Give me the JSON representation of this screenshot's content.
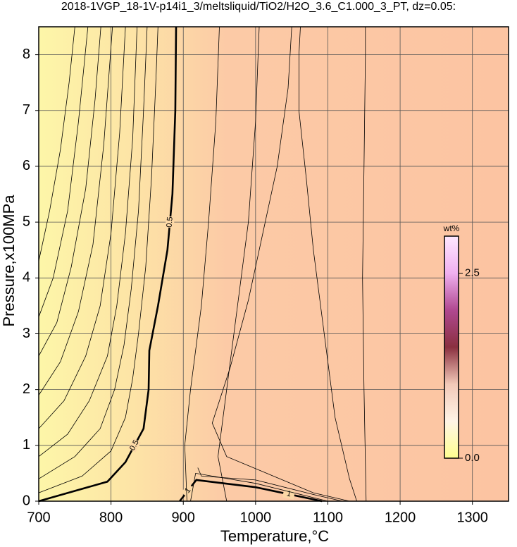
{
  "chart_data": {
    "type": "contour",
    "title": "2018-1VGP_18-1V-p14i1_3/meltsliquid/TiO2/H2O_3.6_C1.000_3_PT, dz=0.05:",
    "x_label": "Temperature,°C",
    "y_label": "Pressure,x100MPa",
    "xlim": [
      700,
      1350
    ],
    "xticks": [
      700,
      800,
      900,
      1000,
      1100,
      1200,
      1300
    ],
    "ylim": [
      0,
      8.5
    ],
    "yticks": [
      0,
      1,
      2,
      3,
      4,
      5,
      6,
      7,
      8
    ],
    "grid": true,
    "contours": [
      {
        "level": 0.5,
        "x": [
          700,
          795,
          820,
          845,
          852,
          853,
          865,
          878,
          885,
          889,
          890
        ],
        "y": [
          0,
          0.35,
          0.7,
          1.3,
          2.0,
          2.7,
          3.5,
          4.5,
          5.5,
          7,
          8.5
        ],
        "labels": [
          "0.5",
          "0.5"
        ]
      },
      {
        "level": 1,
        "x": [
          895,
          918,
          1000,
          1092
        ],
        "y": [
          0,
          0.38,
          0.25,
          0
        ],
        "labels": [
          "1",
          "1"
        ]
      },
      {
        "level": 0.45,
        "x": [
          700,
          760,
          800,
          820,
          830,
          838,
          848,
          856,
          862,
          865
        ],
        "y": [
          0.15,
          0.45,
          0.9,
          1.5,
          2.2,
          3,
          4.2,
          5.8,
          7.5,
          8.5
        ]
      },
      {
        "level": 0.4,
        "x": [
          700,
          750,
          785,
          805,
          818,
          828,
          838,
          845,
          850
        ],
        "y": [
          0.4,
          0.8,
          1.3,
          2.0,
          2.8,
          3.8,
          5.2,
          7,
          8.5
        ]
      },
      {
        "level": 0.35,
        "x": [
          700,
          740,
          770,
          795,
          808,
          820,
          830,
          836
        ],
        "y": [
          0.8,
          1.2,
          1.8,
          2.6,
          3.5,
          4.8,
          6.5,
          8.5
        ]
      },
      {
        "level": 0.3,
        "x": [
          700,
          735,
          765,
          785,
          800,
          812,
          820
        ],
        "y": [
          1.3,
          1.8,
          2.6,
          3.5,
          4.8,
          6.6,
          8.5
        ]
      },
      {
        "level": 0.25,
        "x": [
          700,
          730,
          755,
          775,
          790,
          802
        ],
        "y": [
          1.9,
          2.5,
          3.4,
          4.6,
          6.4,
          8.5
        ]
      },
      {
        "level": 0.2,
        "x": [
          700,
          725,
          745,
          765,
          778,
          786
        ],
        "y": [
          2.6,
          3.2,
          4.2,
          5.6,
          7.2,
          8.5
        ]
      },
      {
        "level": 0.15,
        "x": [
          700,
          720,
          740,
          755,
          768
        ],
        "y": [
          3.3,
          4.0,
          5.2,
          6.8,
          8.5
        ]
      },
      {
        "level": 0.1,
        "x": [
          700,
          715,
          730,
          742,
          750
        ],
        "y": [
          4.3,
          5.2,
          6.3,
          7.5,
          8.5
        ]
      },
      {
        "level": 0.55,
        "x": [
          905,
          902,
          910,
          925,
          935,
          945,
          950
        ],
        "y": [
          0,
          1.0,
          2.0,
          3.5,
          5.0,
          6.8,
          8.5
        ]
      },
      {
        "level": 0.6,
        "x": [
          960,
          948,
          960,
          975,
          990,
          1000,
          1005
        ],
        "y": [
          0,
          0.8,
          2.0,
          3.5,
          5.0,
          6.8,
          8.5
        ]
      },
      {
        "level": 0.65,
        "x": [
          1130,
          1080,
          960,
          940,
          965,
          990,
          1010,
          1030,
          1045,
          1050
        ],
        "y": [
          0,
          0.15,
          0.8,
          1.4,
          2.4,
          3.6,
          4.8,
          6,
          7.4,
          8.5
        ]
      },
      {
        "level": 0.7,
        "x": [
          1140,
          1130,
          1110,
          1095,
          1080,
          1070,
          1060,
          1060,
          1062
        ],
        "y": [
          0,
          0.4,
          1.5,
          3,
          4.5,
          5.8,
          7,
          8,
          8.5
        ]
      },
      {
        "level": 0.75,
        "x": [
          1153,
          1150,
          1148,
          1150,
          1152,
          1152
        ],
        "y": [
          0,
          2,
          4,
          6,
          8,
          8.5
        ]
      },
      {
        "level": 0.9,
        "x": [
          920,
          925,
          1000,
          1080,
          1120
        ],
        "y": [
          0.6,
          0.45,
          0.38,
          0.12,
          0
        ]
      },
      {
        "level": 0.95,
        "x": [
          910,
          917,
          1000,
          1100
        ],
        "y": [
          0,
          0.5,
          0.32,
          0
        ]
      }
    ],
    "colorbar": {
      "label": "wt%",
      "lim": [
        0,
        3
      ],
      "ticks": [
        {
          "value": 0,
          "label": "0.0"
        },
        {
          "value": 2.5,
          "label": "2.5"
        }
      ],
      "colors": [
        "#ffff90",
        "#fff4e6",
        "#f2c9b8",
        "#8a3040",
        "#b04890",
        "#f0b0f0",
        "#ffe8ff"
      ]
    }
  }
}
